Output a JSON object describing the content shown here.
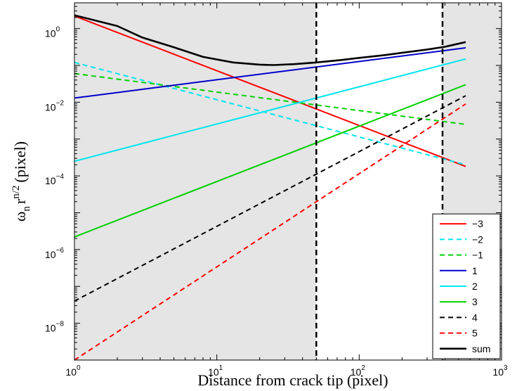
{
  "chart_data": {
    "type": "line",
    "xscale": "log",
    "yscale": "log",
    "xlim": [
      1,
      1000
    ],
    "ylim": [
      1e-09,
      5
    ],
    "xticks": [
      {
        "value": 1,
        "base": "10",
        "exp": "0"
      },
      {
        "value": 10,
        "base": "10",
        "exp": "1"
      },
      {
        "value": 100,
        "base": "10",
        "exp": "2"
      },
      {
        "value": 1000,
        "base": "10",
        "exp": "3"
      }
    ],
    "yticks": [
      {
        "value": 1,
        "base": "10",
        "exp": "0"
      },
      {
        "value": 0.01,
        "base": "10",
        "exp": "−2"
      },
      {
        "value": 0.0001,
        "base": "10",
        "exp": "−4"
      },
      {
        "value": 1e-06,
        "base": "10",
        "exp": "−6"
      },
      {
        "value": 1e-08,
        "base": "10",
        "exp": "−8"
      }
    ],
    "xlabel": "Distance from crack tip (pixel)",
    "ylabel": {
      "omega": "ω",
      "sub_n": "n",
      "r": "r",
      "sup": "n/2",
      "unit": "(pixel)"
    },
    "shaded_regions": [
      {
        "x": [
          1,
          50
        ],
        "color": "#e5e5e5"
      },
      {
        "x": [
          385,
          1000
        ],
        "color": "#e5e5e5"
      }
    ],
    "vertical_lines": [
      {
        "x": 50,
        "color": "#000000",
        "style": "dashed"
      },
      {
        "x": 385,
        "color": "#000000",
        "style": "dashed"
      }
    ],
    "legend_position": "lower-right",
    "series": [
      {
        "name": "−3",
        "color": "#ff0000",
        "style": "solid",
        "x": [
          1,
          560
        ],
        "y": [
          2.2,
          0.00018
        ]
      },
      {
        "name": "−2",
        "color": "#00e5ee",
        "style": "dashed",
        "x": [
          1,
          560
        ],
        "y": [
          0.12,
          0.0002
        ]
      },
      {
        "name": "−1",
        "color": "#00d000",
        "style": "dashed",
        "x": [
          1,
          560
        ],
        "y": [
          0.06,
          0.0025
        ]
      },
      {
        "name": "1",
        "color": "#0000cc",
        "style": "solid",
        "x": [
          1,
          560
        ],
        "y": [
          0.013,
          0.3
        ]
      },
      {
        "name": "2",
        "color": "#00e5ee",
        "style": "solid",
        "x": [
          1,
          560
        ],
        "y": [
          0.00025,
          0.15
        ]
      },
      {
        "name": "3",
        "color": "#00d000",
        "style": "solid",
        "x": [
          1,
          560
        ],
        "y": [
          2.2e-06,
          0.03
        ]
      },
      {
        "name": "4",
        "color": "#000000",
        "style": "dashed",
        "x": [
          1,
          560
        ],
        "y": [
          4e-08,
          0.015
        ]
      },
      {
        "name": "5",
        "color": "#ff0000",
        "style": "dashed",
        "x": [
          1,
          560
        ],
        "y": [
          1e-09,
          0.009
        ]
      },
      {
        "name": "sum",
        "color": "#000000",
        "style": "solid",
        "x": [
          1,
          2,
          3,
          5,
          8,
          13,
          20,
          25,
          35,
          50,
          75,
          100,
          150,
          200,
          300,
          400,
          560
        ],
        "y": [
          2.3,
          1.17,
          0.57,
          0.31,
          0.17,
          0.12,
          0.105,
          0.102,
          0.108,
          0.12,
          0.14,
          0.16,
          0.19,
          0.22,
          0.27,
          0.32,
          0.43
        ]
      }
    ]
  }
}
